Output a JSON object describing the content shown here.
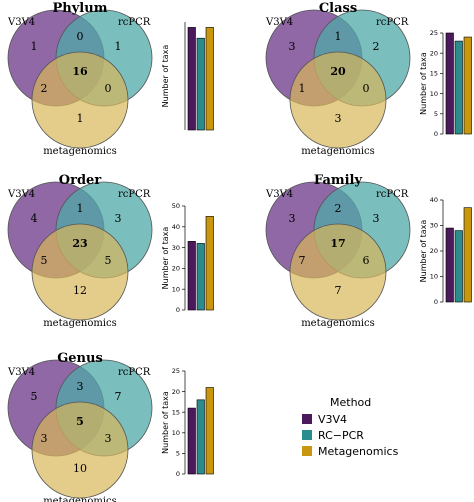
{
  "colors": {
    "v3v4": "#4a1a5c",
    "rcpcr": "#2a8c8c",
    "metagenomics": "#c8960f",
    "venn_v3v4": "#7b4e95",
    "venn_rcpcr": "#4fa8a8",
    "venn_meta": "#d8b65a"
  },
  "venn_labels": {
    "set_a": "V3V4",
    "set_b": "rcPCR",
    "set_c": "metagenomics"
  },
  "legend": {
    "title": "Method",
    "items": [
      "V3V4",
      "RC−PCR",
      "Metagenomics"
    ]
  },
  "chart_data": [
    {
      "type": "venn",
      "title": "Phylum",
      "regions": {
        "a_only": 1,
        "b_only": 1,
        "c_only": 1,
        "ab": 0,
        "ac": 2,
        "bc": 0,
        "abc": 16
      }
    },
    {
      "type": "bar",
      "ylabel": "Number of taxa",
      "categories": [
        "V3V4",
        "RC−PCR",
        "Metagenomics"
      ],
      "values": [
        19,
        17,
        19
      ],
      "ylim": [
        0,
        20
      ],
      "ticks": []
    },
    {
      "type": "venn",
      "title": "Class",
      "regions": {
        "a_only": 3,
        "b_only": 2,
        "c_only": 3,
        "ab": 1,
        "ac": 1,
        "bc": 0,
        "abc": 20
      }
    },
    {
      "type": "bar",
      "ylabel": "Number of taxa",
      "categories": [
        "V3V4",
        "RC−PCR",
        "Metagenomics"
      ],
      "values": [
        25,
        23,
        24
      ],
      "ylim": [
        0,
        25
      ],
      "ticks": [
        0,
        5,
        10,
        15,
        20,
        25
      ]
    },
    {
      "type": "venn",
      "title": "Order",
      "regions": {
        "a_only": 4,
        "b_only": 3,
        "c_only": 12,
        "ab": 1,
        "ac": 5,
        "bc": 5,
        "abc": 23
      }
    },
    {
      "type": "bar",
      "ylabel": "Number of taxa",
      "categories": [
        "V3V4",
        "RC−PCR",
        "Metagenomics"
      ],
      "values": [
        33,
        32,
        45
      ],
      "ylim": [
        0,
        50
      ],
      "ticks": [
        0,
        10,
        20,
        30,
        40,
        50
      ]
    },
    {
      "type": "venn",
      "title": "Family",
      "regions": {
        "a_only": 3,
        "b_only": 3,
        "c_only": 7,
        "ab": 2,
        "ac": 7,
        "bc": 6,
        "abc": 17
      }
    },
    {
      "type": "bar",
      "ylabel": "Number of taxa",
      "categories": [
        "V3V4",
        "RC−PCR",
        "Metagenomics"
      ],
      "values": [
        29,
        28,
        37
      ],
      "ylim": [
        0,
        40
      ],
      "ticks": [
        0,
        10,
        20,
        30,
        40
      ]
    },
    {
      "type": "venn",
      "title": "Genus",
      "regions": {
        "a_only": 5,
        "b_only": 7,
        "c_only": 10,
        "ab": 3,
        "ac": 3,
        "bc": 3,
        "abc": 5
      }
    },
    {
      "type": "bar",
      "ylabel": "Number of taxa",
      "categories": [
        "V3V4",
        "RC−PCR",
        "Metagenomics"
      ],
      "values": [
        16,
        18,
        21
      ],
      "ylim": [
        0,
        25
      ],
      "ticks": [
        0,
        5,
        10,
        15,
        20,
        25
      ]
    }
  ]
}
